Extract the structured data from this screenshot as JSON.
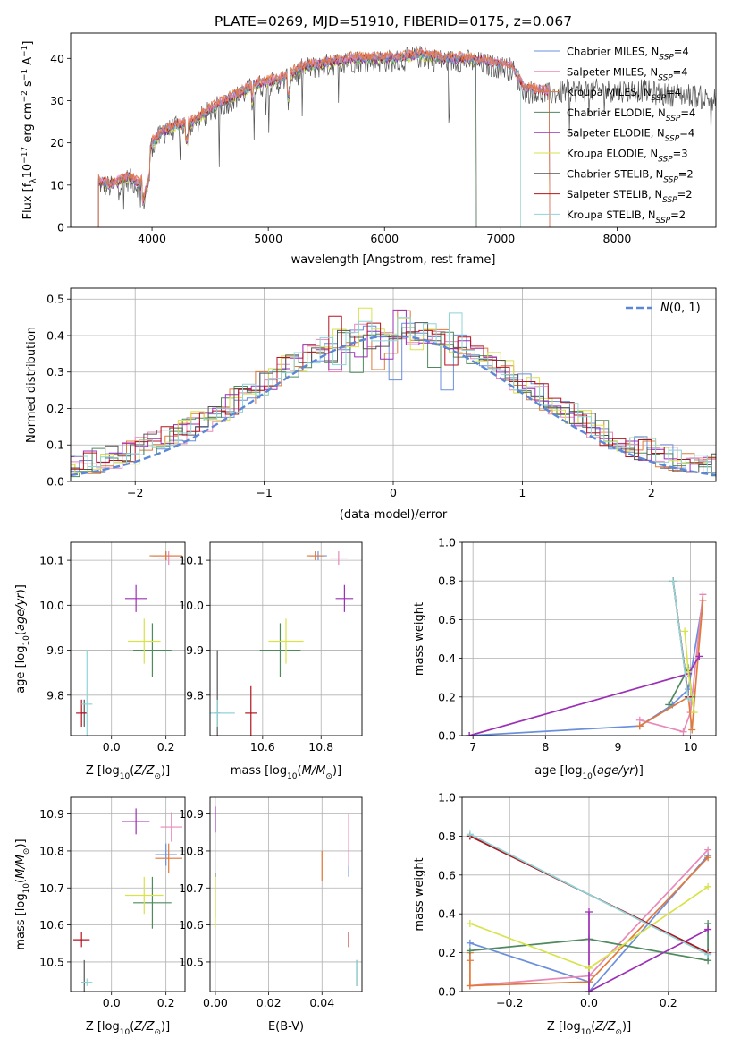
{
  "figure": {
    "title": "PLATE=0269, MJD=51910, FIBERID=0175, z=0.067"
  },
  "colors": {
    "Chabrier MILES": "#6b8fdc",
    "Salpeter MILES": "#e889b8",
    "Kroupa MILES": "#e0793a",
    "Chabrier ELODIE": "#4f8a5e",
    "Salpeter ELODIE": "#9b2fb5",
    "Kroupa ELODIE": "#d8e24a",
    "Chabrier STELIB": "#555555",
    "Salpeter STELIB": "#b4141e",
    "Kroupa STELIB": "#8fd4d6",
    "gaussian": "#5b88d6"
  },
  "chart_data": [
    {
      "id": "spectrum",
      "type": "line",
      "xlabel": "wavelength [Angstrom, rest frame]",
      "ylabel": "Flux [fλ10⁻¹⁷ erg cm⁻² s⁻¹ A⁻¹]",
      "xlim": [
        3300,
        8850
      ],
      "ylim": [
        0,
        46
      ],
      "xticks": [
        4000,
        5000,
        6000,
        7000,
        8000
      ],
      "yticks": [
        0,
        10,
        20,
        30,
        40
      ],
      "continuum": {
        "x": [
          3540,
          3650,
          3800,
          3900,
          4000,
          4100,
          4200,
          4350,
          4500,
          4700,
          4900,
          5100,
          5300,
          5500,
          5700,
          5900,
          6100,
          6300,
          6500,
          6700,
          6900,
          7100,
          7200,
          7400,
          7600,
          7800,
          8000,
          8200,
          8400,
          8600,
          8800
        ],
        "y": [
          11,
          10,
          12,
          10,
          20,
          23,
          24,
          25,
          28,
          31,
          34,
          35,
          38,
          39,
          40,
          40,
          40,
          41,
          40,
          40,
          39,
          38,
          33,
          32,
          33,
          33,
          33,
          33,
          32,
          32,
          31
        ]
      },
      "legend_loc": "upper right",
      "legend": [
        {
          "label": "Chabrier MILES, N",
          "n": "4"
        },
        {
          "label": "Salpeter MILES, N",
          "n": "4"
        },
        {
          "label": "Kroupa MILES, N",
          "n": "4"
        },
        {
          "label": "Chabrier ELODIE, N",
          "n": "4"
        },
        {
          "label": "Salpeter ELODIE, N",
          "n": "4"
        },
        {
          "label": "Kroupa ELODIE, N",
          "n": "3"
        },
        {
          "label": "Chabrier STELIB, N",
          "n": "2"
        },
        {
          "label": "Salpeter STELIB, N",
          "n": "2"
        },
        {
          "label": "Kroupa STELIB, N",
          "n": "2"
        }
      ],
      "legend_sub": "SSP"
    },
    {
      "id": "residuals",
      "type": "histogram",
      "xlabel": "(data-model)/error",
      "ylabel": "Normed distribution",
      "xlim": [
        -2.5,
        2.5
      ],
      "ylim": [
        0,
        0.53
      ],
      "xticks": [
        -2,
        -1,
        0,
        1,
        2
      ],
      "yticks": [
        0.0,
        0.1,
        0.2,
        0.3,
        0.4,
        0.5
      ],
      "grid": true,
      "legend": "N(0,1)",
      "legend_loc": "upper right"
    },
    {
      "id": "age_vs_Z",
      "type": "errorbar",
      "xlabel": "Z [log10(Z/Z⊙)]",
      "ylabel": "age  [log10(age/yr)]",
      "xlim": [
        -0.15,
        0.27
      ],
      "ylim": [
        9.71,
        10.14
      ],
      "xticks": [
        0.0,
        0.2
      ],
      "xtick_labels": [
        "0.0",
        "0.2"
      ],
      "yticks": [
        9.8,
        9.9,
        10.0,
        10.1
      ],
      "points": [
        {
          "model": "Chabrier MILES",
          "x": 0.2,
          "y": 10.11,
          "xerr": 0.05,
          "yerr": 0.01
        },
        {
          "model": "Salpeter MILES",
          "x": 0.21,
          "y": 10.105,
          "xerr": 0.04,
          "yerr": 0.015
        },
        {
          "model": "Kroupa MILES",
          "x": 0.2,
          "y": 10.11,
          "xerr": 0.06,
          "yerr": 0.01
        },
        {
          "model": "Chabrier ELODIE",
          "x": 0.15,
          "y": 9.9,
          "xerr": 0.07,
          "yerr": 0.06
        },
        {
          "model": "Salpeter ELODIE",
          "x": 0.09,
          "y": 10.015,
          "xerr": 0.04,
          "yerr": 0.03
        },
        {
          "model": "Kroupa ELODIE",
          "x": 0.12,
          "y": 9.92,
          "xerr": 0.06,
          "yerr": 0.05
        },
        {
          "model": "Chabrier STELIB",
          "x": -0.1,
          "y": 9.76,
          "xerr": 0.01,
          "yerr": 0.03
        },
        {
          "model": "Salpeter STELIB",
          "x": -0.11,
          "y": 9.76,
          "xerr": 0.02,
          "yerr": 0.03
        },
        {
          "model": "Kroupa STELIB",
          "x": -0.09,
          "y": 9.78,
          "xerr": 0.02,
          "yerr": 0.12
        }
      ]
    },
    {
      "id": "age_vs_mass",
      "type": "errorbar",
      "xlabel": "mass [log10(M/M⊙)]",
      "ylabel": "",
      "xlim": [
        10.42,
        10.94
      ],
      "ylim": [
        9.71,
        10.14
      ],
      "xticks": [
        10.6,
        10.8
      ],
      "yticks": [
        9.8,
        9.9,
        10.0,
        10.1
      ],
      "points": [
        {
          "model": "Chabrier MILES",
          "x": 10.79,
          "y": 10.11,
          "xerr": 0.03,
          "yerr": 0.01
        },
        {
          "model": "Salpeter MILES",
          "x": 10.86,
          "y": 10.105,
          "xerr": 0.03,
          "yerr": 0.015
        },
        {
          "model": "Kroupa MILES",
          "x": 10.78,
          "y": 10.11,
          "xerr": 0.03,
          "yerr": 0.01
        },
        {
          "model": "Chabrier ELODIE",
          "x": 10.66,
          "y": 9.9,
          "xerr": 0.07,
          "yerr": 0.06
        },
        {
          "model": "Salpeter ELODIE",
          "x": 10.88,
          "y": 10.015,
          "xerr": 0.03,
          "yerr": 0.03
        },
        {
          "model": "Kroupa ELODIE",
          "x": 10.68,
          "y": 9.92,
          "xerr": 0.06,
          "yerr": 0.05
        },
        {
          "model": "Chabrier STELIB",
          "x": 10.445,
          "y": 9.76,
          "xerr": 0.01,
          "yerr": 0.14
        },
        {
          "model": "Salpeter STELIB",
          "x": 10.56,
          "y": 9.76,
          "xerr": 0.02,
          "yerr": 0.06
        },
        {
          "model": "Kroupa STELIB",
          "x": 10.445,
          "y": 9.76,
          "xerr": 0.06,
          "yerr": 0.03
        }
      ]
    },
    {
      "id": "weight_vs_age",
      "type": "line",
      "xlabel": "age  [log10(age/yr)]",
      "ylabel": "mass weight",
      "xlim": [
        6.85,
        10.35
      ],
      "ylim": [
        0,
        1.0
      ],
      "xticks": [
        7,
        8,
        9,
        10
      ],
      "yticks": [
        0.0,
        0.2,
        0.4,
        0.6,
        0.8,
        1.0
      ],
      "grid": true,
      "series": [
        {
          "model": "Chabrier MILES",
          "x": [
            6.95,
            9.3,
            9.75,
            9.97,
            10.17
          ],
          "y": [
            0.0,
            0.05,
            0.16,
            0.24,
            0.7
          ]
        },
        {
          "model": "Salpeter MILES",
          "x": [
            9.3,
            9.9,
            10.0,
            10.17
          ],
          "y": [
            0.08,
            0.02,
            0.12,
            0.73
          ]
        },
        {
          "model": "Kroupa MILES",
          "x": [
            9.3,
            9.97,
            10.02,
            10.17
          ],
          "y": [
            0.05,
            0.2,
            0.03,
            0.7
          ]
        },
        {
          "model": "Chabrier ELODIE",
          "x": [
            9.7,
            9.97,
            10.02
          ],
          "y": [
            0.16,
            0.35,
            0.2
          ]
        },
        {
          "model": "Salpeter ELODIE",
          "x": [
            6.95,
            9.97,
            10.12
          ],
          "y": [
            0.0,
            0.32,
            0.41
          ]
        },
        {
          "model": "Kroupa ELODIE",
          "x": [
            9.92,
            9.97,
            10.05
          ],
          "y": [
            0.54,
            0.33,
            0.12
          ]
        },
        {
          "model": "Chabrier STELIB",
          "x": [
            9.76,
            9.97
          ],
          "y": [
            0.8,
            0.2
          ]
        },
        {
          "model": "Salpeter STELIB",
          "x": [
            9.76,
            9.97
          ],
          "y": [
            0.8,
            0.2
          ]
        },
        {
          "model": "Kroupa STELIB",
          "x": [
            9.76,
            9.97
          ],
          "y": [
            0.8,
            0.19
          ]
        }
      ]
    },
    {
      "id": "mass_vs_Z",
      "type": "errorbar",
      "xlabel": "Z [log10(Z/Z⊙)]",
      "ylabel": "mass [log10(M/M⊙)]",
      "xlim": [
        -0.15,
        0.27
      ],
      "ylim": [
        10.42,
        10.945
      ],
      "xticks": [
        0.0,
        0.2
      ],
      "xtick_labels": [
        "0.0",
        "0.2"
      ],
      "yticks": [
        10.5,
        10.6,
        10.7,
        10.8,
        10.9
      ],
      "points": [
        {
          "model": "Chabrier MILES",
          "x": 0.2,
          "y": 10.79,
          "xerr": 0.04,
          "yerr": 0.03
        },
        {
          "model": "Salpeter MILES",
          "x": 0.22,
          "y": 10.865,
          "xerr": 0.04,
          "yerr": 0.04
        },
        {
          "model": "Kroupa MILES",
          "x": 0.21,
          "y": 10.78,
          "xerr": 0.05,
          "yerr": 0.04
        },
        {
          "model": "Chabrier ELODIE",
          "x": 0.15,
          "y": 10.66,
          "xerr": 0.07,
          "yerr": 0.07
        },
        {
          "model": "Salpeter ELODIE",
          "x": 0.09,
          "y": 10.88,
          "xerr": 0.05,
          "yerr": 0.035
        },
        {
          "model": "Kroupa ELODIE",
          "x": 0.12,
          "y": 10.68,
          "xerr": 0.07,
          "yerr": 0.05
        },
        {
          "model": "Chabrier STELIB",
          "x": -0.1,
          "y": 10.445,
          "xerr": 0.01,
          "yerr": 0.06
        },
        {
          "model": "Salpeter STELIB",
          "x": -0.11,
          "y": 10.56,
          "xerr": 0.03,
          "yerr": 0.02
        },
        {
          "model": "Kroupa STELIB",
          "x": -0.09,
          "y": 10.445,
          "xerr": 0.02,
          "yerr": 0.01
        }
      ]
    },
    {
      "id": "mass_vs_ebv",
      "type": "errorbar",
      "xlabel": "E(B-V)",
      "ylabel": "",
      "xlim": [
        -0.002,
        0.055
      ],
      "ylim": [
        10.42,
        10.945
      ],
      "xticks": [
        0.0,
        0.02,
        0.04
      ],
      "xtick_labels": [
        "0.00",
        "0.02",
        "0.04"
      ],
      "yticks": [
        10.5,
        10.6,
        10.7,
        10.8,
        10.9
      ],
      "points": [
        {
          "model": "Chabrier MILES",
          "x": 0.05,
          "y": 10.79,
          "xerr": 0,
          "yerr": 0.06
        },
        {
          "model": "Salpeter MILES",
          "x": 0.05,
          "y": 10.83,
          "xerr": 0,
          "yerr": 0.07
        },
        {
          "model": "Kroupa MILES",
          "x": 0.04,
          "y": 10.76,
          "xerr": 0,
          "yerr": 0.04
        },
        {
          "model": "Chabrier ELODIE",
          "x": 0.0,
          "y": 10.68,
          "xerr": 0,
          "yerr": 0.06
        },
        {
          "model": "Salpeter ELODIE",
          "x": 0.0,
          "y": 10.885,
          "xerr": 0,
          "yerr": 0.035
        },
        {
          "model": "Kroupa ELODIE",
          "x": 0.0,
          "y": 10.66,
          "xerr": 0,
          "yerr": 0.07
        },
        {
          "model": "Chabrier STELIB",
          "x": 0.053,
          "y": 10.47,
          "xerr": 0,
          "yerr": 0.035
        },
        {
          "model": "Salpeter STELIB",
          "x": 0.05,
          "y": 10.56,
          "xerr": 0,
          "yerr": 0.02
        },
        {
          "model": "Kroupa STELIB",
          "x": 0.053,
          "y": 10.47,
          "xerr": 0,
          "yerr": 0.035
        }
      ]
    },
    {
      "id": "weight_vs_Z",
      "type": "line",
      "xlabel": "Z [log10(Z/Z⊙)]",
      "ylabel": "mass weight",
      "xlim": [
        -0.32,
        0.32
      ],
      "ylim": [
        0,
        1.0
      ],
      "xticks": [
        -0.2,
        0.0,
        0.2
      ],
      "xtick_labels": [
        "−0.2",
        "0.0",
        "0.2"
      ],
      "yticks": [
        0.0,
        0.2,
        0.4,
        0.6,
        0.8,
        1.0
      ],
      "grid": true,
      "series": [
        {
          "model": "Chabrier MILES",
          "x": [
            -0.3,
            0.0,
            0.0,
            0.3
          ],
          "y": [
            0.25,
            0.05,
            0.0,
            0.7
          ]
        },
        {
          "model": "Salpeter MILES",
          "x": [
            -0.3,
            0.0,
            0.3
          ],
          "y": [
            0.03,
            0.08,
            0.73
          ]
        },
        {
          "model": "Kroupa MILES",
          "x": [
            -0.3,
            -0.3,
            -0.3,
            0.0,
            0.3
          ],
          "y": [
            0.2,
            0.16,
            0.03,
            0.05,
            0.69
          ]
        },
        {
          "model": "Chabrier ELODIE",
          "x": [
            -0.3,
            0.0,
            0.3,
            0.3
          ],
          "y": [
            0.21,
            0.27,
            0.16,
            0.35
          ]
        },
        {
          "model": "Salpeter ELODIE",
          "x": [
            0.0,
            0.0,
            0.3
          ],
          "y": [
            0.41,
            0.0,
            0.32
          ]
        },
        {
          "model": "Kroupa ELODIE",
          "x": [
            -0.3,
            0.0,
            0.3
          ],
          "y": [
            0.35,
            0.12,
            0.54
          ]
        },
        {
          "model": "Chabrier STELIB",
          "x": [
            -0.3,
            0.3
          ],
          "y": [
            0.8,
            0.2
          ]
        },
        {
          "model": "Salpeter STELIB",
          "x": [
            -0.3,
            0.3
          ],
          "y": [
            0.8,
            0.2
          ]
        },
        {
          "model": "Kroupa STELIB",
          "x": [
            -0.3,
            0.3
          ],
          "y": [
            0.81,
            0.19
          ]
        }
      ]
    }
  ]
}
